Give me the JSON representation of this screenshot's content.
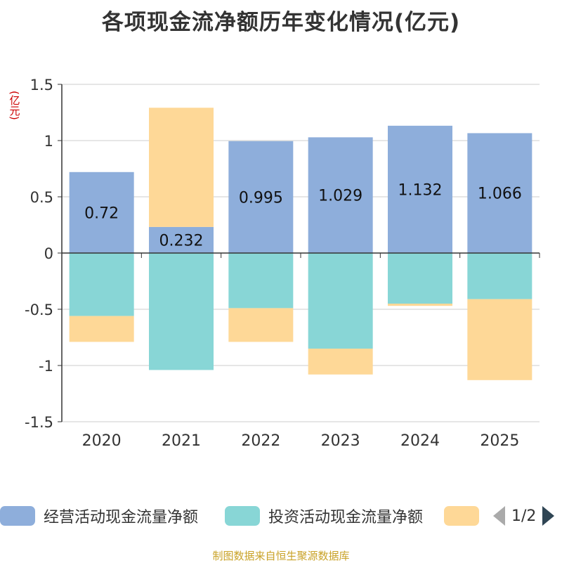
{
  "chart_data": {
    "type": "bar",
    "stacked": true,
    "title": "各项现金流净额历年变化情况(亿元)",
    "ylabel": "(亿元)",
    "xlabel": "",
    "categories": [
      "2020",
      "2021",
      "2022",
      "2023",
      "2024",
      "2025"
    ],
    "ylim": [
      -1.5,
      1.5
    ],
    "yticks": [
      1.5,
      1,
      0.5,
      0,
      -0.5,
      -1,
      -1.5
    ],
    "ytick_labels": [
      "1.5",
      "1",
      "0.5",
      "0",
      "-0.5",
      "-1",
      "-1.5"
    ],
    "grid": true,
    "series": [
      {
        "name": "经营活动现金流量净额",
        "color": "#8eaedb",
        "values": [
          0.72,
          0.232,
          0.995,
          1.029,
          1.132,
          1.066
        ],
        "data_labels": [
          "0.72",
          "0.232",
          "0.995",
          "1.029",
          "1.132",
          "1.066"
        ]
      },
      {
        "name": "投资活动现金流量净额",
        "color": "#88d6d6",
        "values": [
          -0.56,
          -1.04,
          -0.49,
          -0.85,
          -0.45,
          -0.41
        ]
      },
      {
        "name": "",
        "color": "#fed897",
        "values": [
          -0.23,
          1.06,
          -0.3,
          -0.23,
          -0.02,
          -0.72
        ]
      }
    ],
    "legend_position": "bottom"
  },
  "legend": {
    "items": [
      {
        "label": "经营活动现金流量净额",
        "color": "#8eaedb"
      },
      {
        "label": "投资活动现金流量净额",
        "color": "#88d6d6"
      },
      {
        "label": "",
        "color": "#fed897"
      }
    ],
    "page_indicator": "1/2"
  },
  "source": "制图数据来自恒生聚源数据库"
}
